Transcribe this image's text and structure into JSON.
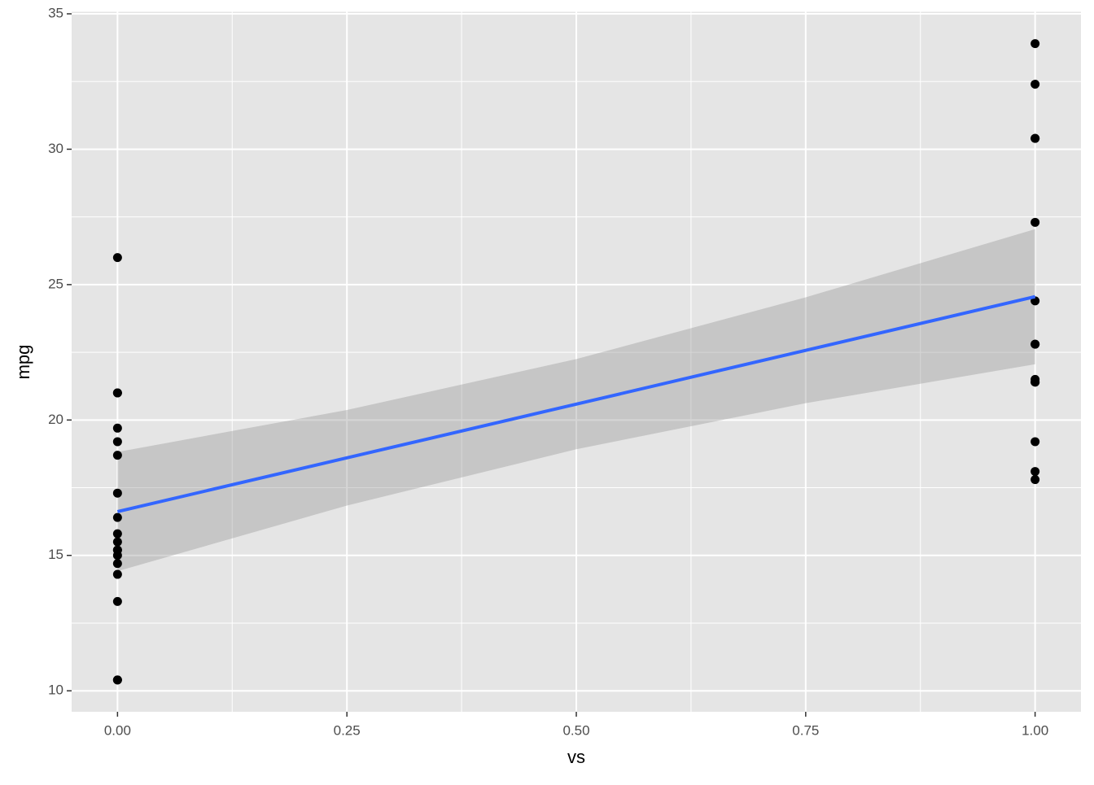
{
  "chart_data": {
    "type": "scatter",
    "x_label": "vs",
    "y_label": "mpg",
    "xlim": [
      -0.05,
      1.05
    ],
    "ylim": [
      9.225,
      35.075
    ],
    "xticks": [
      {
        "value": 0,
        "label": "0.00"
      },
      {
        "value": 0.25,
        "label": "0.25"
      },
      {
        "value": 0.5,
        "label": "0.50"
      },
      {
        "value": 0.75,
        "label": "0.75"
      },
      {
        "value": 1,
        "label": "1.00"
      }
    ],
    "yticks": [
      10,
      15,
      20,
      25,
      30,
      35
    ],
    "grid": true,
    "points": {
      "color": "#000000",
      "x": [
        0,
        0,
        0,
        0,
        0,
        0,
        0,
        0,
        0,
        0,
        0,
        0,
        0,
        0,
        0,
        0,
        0,
        0,
        1,
        1,
        1,
        1,
        1,
        1,
        1,
        1,
        1,
        1,
        1,
        1,
        1,
        1
      ],
      "y": [
        21,
        21,
        18.7,
        14.3,
        16.4,
        17.3,
        15.2,
        10.4,
        10.4,
        14.7,
        15.5,
        15.2,
        13.3,
        19.2,
        26,
        15.8,
        19.7,
        15,
        22.8,
        21.4,
        18.1,
        24.4,
        22.8,
        19.2,
        17.8,
        32.4,
        30.4,
        33.9,
        21.5,
        27.3,
        30.4,
        21.4
      ]
    },
    "smooth": {
      "color": "#3366ff",
      "fill": "#999999",
      "x": [
        0,
        0.25,
        0.5,
        0.75,
        1
      ],
      "values": [
        16.617,
        18.602,
        20.587,
        22.572,
        24.557
      ],
      "lower": [
        14.42,
        16.84,
        18.92,
        20.62,
        22.06
      ],
      "upper": [
        18.82,
        20.37,
        22.25,
        24.53,
        27.05
      ]
    }
  }
}
